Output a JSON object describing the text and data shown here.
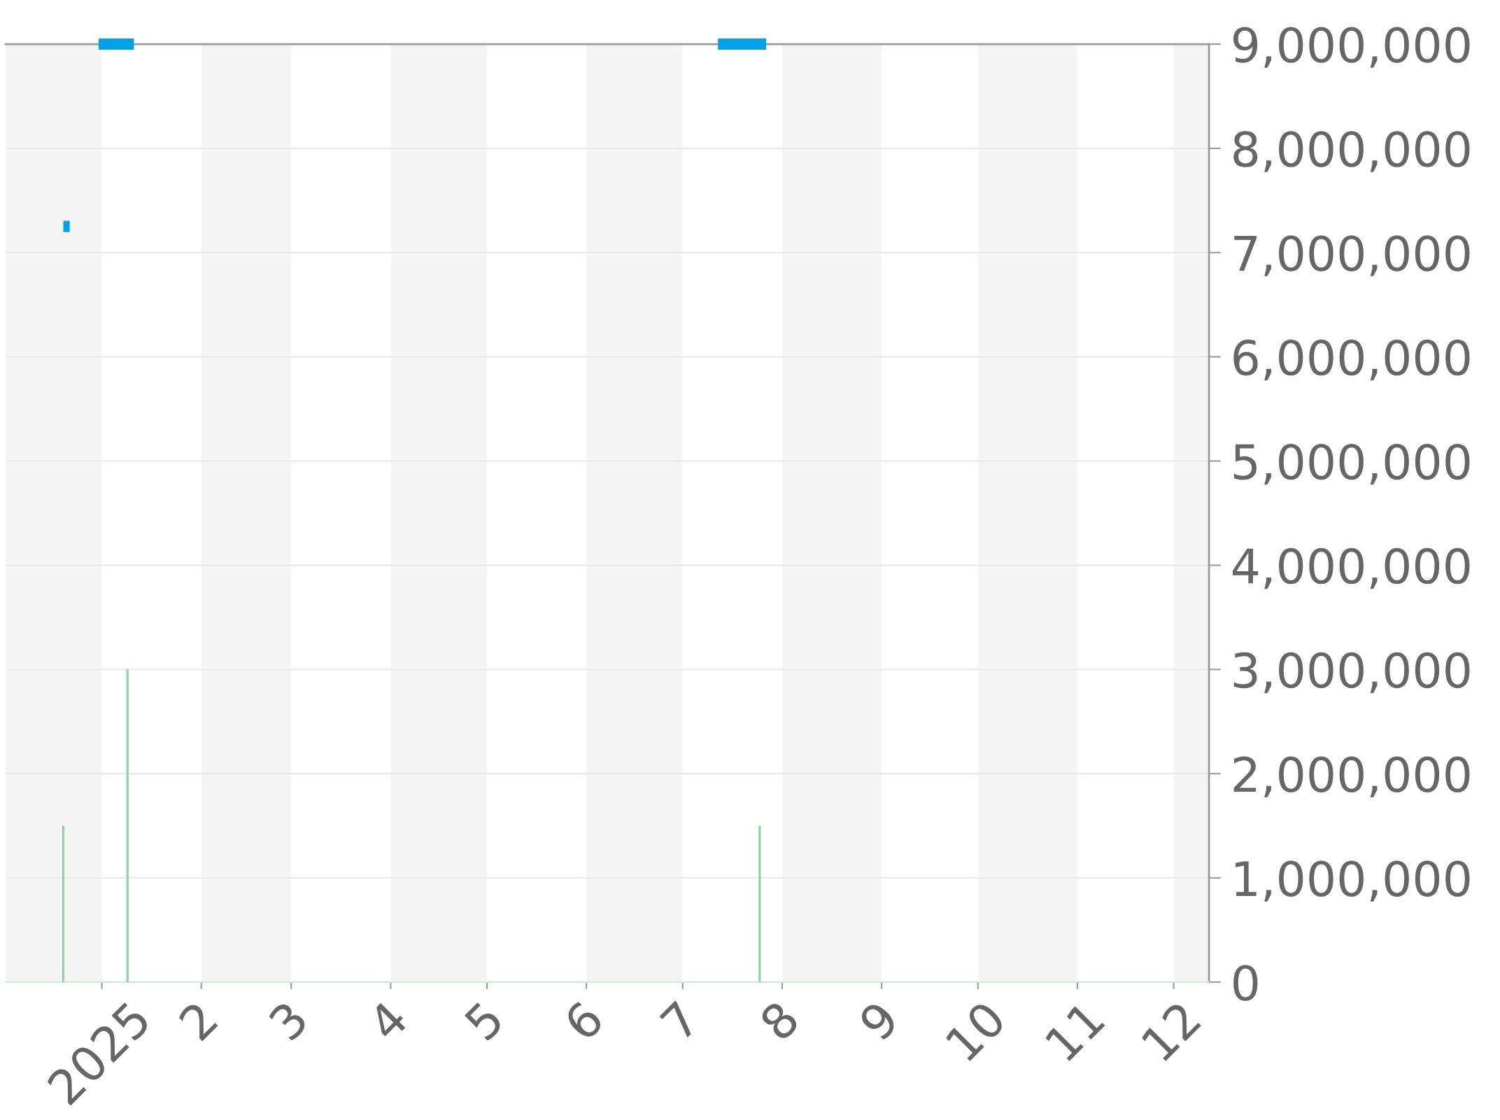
{
  "chart_data": {
    "type": "line",
    "xlim": [
      "2024-12-02",
      "2025-12-12"
    ],
    "xticks": [
      {
        "value": "2025-01-01",
        "label": "2025"
      },
      {
        "value": "2025-02-01",
        "label": "2"
      },
      {
        "value": "2025-03-01",
        "label": "3"
      },
      {
        "value": "2025-04-01",
        "label": "4"
      },
      {
        "value": "2025-05-01",
        "label": "5"
      },
      {
        "value": "2025-06-01",
        "label": "6"
      },
      {
        "value": "2025-07-01",
        "label": "7"
      },
      {
        "value": "2025-08-01",
        "label": "8"
      },
      {
        "value": "2025-09-01",
        "label": "9"
      },
      {
        "value": "2025-10-01",
        "label": "10"
      },
      {
        "value": "2025-11-01",
        "label": "11"
      },
      {
        "value": "2025-12-01",
        "label": "12"
      }
    ],
    "ylim": [
      0,
      9000000
    ],
    "yticks": [
      0,
      {
        "value": 1000000,
        "label": "1,000,000"
      },
      {
        "value": 2000000,
        "label": "2,000,000"
      },
      {
        "value": 3000000,
        "label": "3,000,000"
      },
      {
        "value": 4000000,
        "label": "4,000,000"
      },
      {
        "value": 5000000,
        "label": "5,000,000"
      },
      {
        "value": 6000000,
        "label": "6,000,000"
      },
      {
        "value": 7000000,
        "label": "7,000,000"
      },
      {
        "value": 8000000,
        "label": "8,000,000"
      },
      {
        "value": 9000000,
        "label": "9,000,000"
      }
    ],
    "grid": "y",
    "series": [
      {
        "color": "#00a0e9",
        "x": [
          "2024-12-20",
          "2024-12-22",
          "2024-12-26",
          "2024-12-31",
          "2025-01-11",
          "2025-03-01",
          "2025-07-12",
          "2025-07-27"
        ],
        "values": [
          7250000,
          7250000,
          null,
          9000000,
          9000000,
          null,
          9000000,
          9000000
        ]
      },
      {
        "type": "bar",
        "color": "#8fd3a0",
        "x": [
          "2024-12-20",
          "2025-01-09",
          "2025-07-25"
        ],
        "values": [
          1500000,
          3000000,
          1500000
        ]
      }
    ],
    "bands": [
      {
        "axis": "x",
        "from": "2024-12-02",
        "to": "2025-01-01",
        "color": "#f5f5f5"
      },
      {
        "axis": "x",
        "from": "2025-02-01",
        "to": "2025-03-01",
        "color": "#f5f5f5"
      },
      {
        "axis": "x",
        "from": "2025-04-01",
        "to": "2025-05-01",
        "color": "#f5f5f5"
      },
      {
        "axis": "x",
        "from": "2025-06-01",
        "to": "2025-07-01",
        "color": "#f5f5f5"
      },
      {
        "axis": "x",
        "from": "2025-08-01",
        "to": "2025-09-01",
        "color": "#f5f5f5"
      },
      {
        "axis": "x",
        "from": "2025-10-01",
        "to": "2025-11-01",
        "color": "#f5f5f5"
      },
      {
        "axis": "x",
        "from": "2025-12-01",
        "to": "2025-12-12",
        "color": "#f5f5f5"
      }
    ]
  }
}
